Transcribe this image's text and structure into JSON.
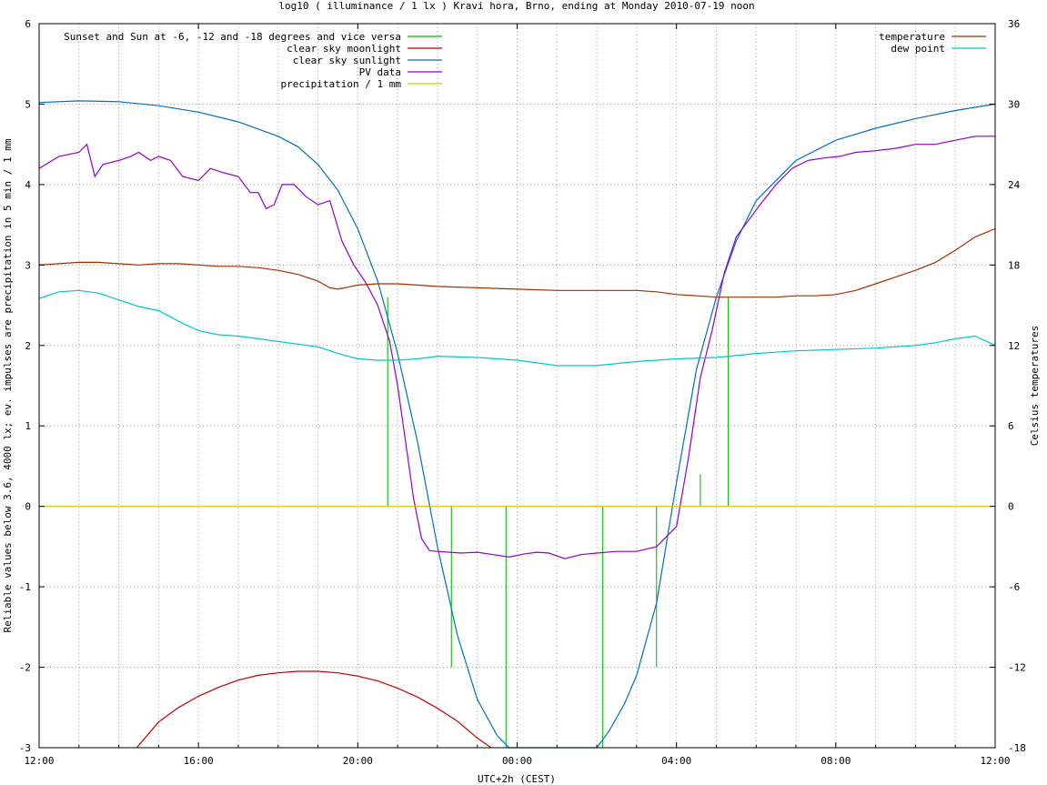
{
  "chart_data": {
    "type": "line",
    "title": "log10 ( illuminance / 1 lx ) Kravi hora, Brno, ending at Monday 2010-07-19 noon",
    "xlabel": "UTC+2h (CEST)",
    "ylabel_left": "Reliable values below 3.6, 4000 lx; ev. impulses are precipitation in 5 min / 1 mm",
    "ylabel_right": "Celsius temperatures",
    "xlim": [
      0,
      24
    ],
    "xtick_values": [
      0,
      4,
      8,
      12,
      16,
      20,
      24
    ],
    "xtick_labels": [
      "12:00",
      "16:00",
      "20:00",
      "00:00",
      "04:00",
      "08:00",
      "12:00"
    ],
    "ylim_left": [
      -3,
      6
    ],
    "yticks_left": [
      "-3",
      "-2",
      "-1",
      "0",
      "1",
      "2",
      "3",
      "4",
      "5",
      "6"
    ],
    "ylim_right": [
      -18,
      36
    ],
    "yticks_right": [
      "-18",
      "-12",
      "-6",
      "0",
      "6",
      "12",
      "18",
      "24",
      "30",
      "36"
    ],
    "grid": true,
    "legend_left": "top-left",
    "legend_right": "top-right",
    "series": [
      {
        "name": "Sunset and Sun at -6, -12 and -18 degrees and vice versa",
        "color": "#00b000",
        "kind": "impulses",
        "x": [
          8.75,
          10.35,
          11.72,
          14.15,
          15.5,
          16.6,
          17.3
        ],
        "y": [
          2.6,
          -2.0,
          -3.0,
          -3.0,
          -2.0,
          0.4,
          2.6
        ]
      },
      {
        "name": "clear sky moonlight",
        "color": "#c00000",
        "kind": "line",
        "x": [
          2.45,
          3.0,
          3.5,
          4.0,
          4.5,
          5.0,
          5.5,
          6.0,
          6.5,
          7.0,
          7.5,
          8.0,
          8.5,
          9.0,
          9.5,
          10.0,
          10.5,
          11.0,
          11.35
        ],
        "y": [
          -3.0,
          -2.68,
          -2.5,
          -2.36,
          -2.25,
          -2.16,
          -2.1,
          -2.07,
          -2.05,
          -2.05,
          -2.07,
          -2.11,
          -2.17,
          -2.26,
          -2.37,
          -2.51,
          -2.67,
          -2.88,
          -3.0
        ]
      },
      {
        "name": "clear sky sunlight",
        "color": "#0070c0",
        "kind": "line",
        "x": [
          0,
          1,
          2,
          3,
          4,
          5,
          6,
          6.5,
          7,
          7.5,
          8,
          8.5,
          9,
          9.5,
          10,
          10.5,
          11,
          11.5,
          11.8,
          14.0,
          14.3,
          14.7,
          15.0,
          15.5,
          16.0,
          16.5,
          17.0,
          17.5,
          18.0,
          19.0,
          20.0,
          21.0,
          22.0,
          23.0,
          24.0
        ],
        "y": [
          5.02,
          5.04,
          5.03,
          4.98,
          4.9,
          4.78,
          4.6,
          4.47,
          4.25,
          3.93,
          3.45,
          2.8,
          1.9,
          0.8,
          -0.5,
          -1.6,
          -2.4,
          -2.85,
          -3.0,
          -3.0,
          -2.8,
          -2.45,
          -2.1,
          -1.2,
          0.3,
          1.7,
          2.6,
          3.3,
          3.8,
          4.3,
          4.55,
          4.7,
          4.82,
          4.92,
          5.0
        ]
      },
      {
        "name": "PV data",
        "color": "#9000d0",
        "kind": "line",
        "x": [
          0,
          0.5,
          1.0,
          1.2,
          1.4,
          1.6,
          2.0,
          2.3,
          2.5,
          2.8,
          3.0,
          3.3,
          3.6,
          4.0,
          4.3,
          4.6,
          5.0,
          5.3,
          5.5,
          5.7,
          5.9,
          6.1,
          6.4,
          6.7,
          7.0,
          7.3,
          7.6,
          7.9,
          8.2,
          8.5,
          8.8,
          9.0,
          9.2,
          9.4,
          9.6,
          9.8,
          10.0,
          10.3,
          10.6,
          11.0,
          11.4,
          11.8,
          12.2,
          12.5,
          12.8,
          13.2,
          13.6,
          14.0,
          14.5,
          15.0,
          15.5,
          16.0,
          16.3,
          16.6,
          16.9,
          17.2,
          17.5,
          17.8,
          18.1,
          18.5,
          18.9,
          19.3,
          19.7,
          20.1,
          20.5,
          21.0,
          21.5,
          22.0,
          22.5,
          23.0,
          23.5,
          24.0
        ],
        "y": [
          4.2,
          4.35,
          4.4,
          4.5,
          4.1,
          4.25,
          4.3,
          4.35,
          4.4,
          4.3,
          4.35,
          4.3,
          4.1,
          4.05,
          4.2,
          4.15,
          4.1,
          3.9,
          3.9,
          3.7,
          3.75,
          4.0,
          4.0,
          3.85,
          3.75,
          3.8,
          3.3,
          3.0,
          2.78,
          2.5,
          2.05,
          1.5,
          0.8,
          0.1,
          -0.4,
          -0.55,
          -0.56,
          -0.57,
          -0.58,
          -0.57,
          -0.6,
          -0.63,
          -0.59,
          -0.57,
          -0.58,
          -0.65,
          -0.6,
          -0.58,
          -0.56,
          -0.56,
          -0.5,
          -0.25,
          0.6,
          1.6,
          2.2,
          2.9,
          3.35,
          3.55,
          3.75,
          4.0,
          4.2,
          4.3,
          4.33,
          4.35,
          4.4,
          4.42,
          4.45,
          4.5,
          4.5,
          4.55,
          4.6,
          4.6
        ]
      },
      {
        "name": "precipitation / 1 mm",
        "color": "#e0c000",
        "kind": "line",
        "x": [
          0,
          24
        ],
        "y": [
          0,
          0
        ]
      },
      {
        "name": "temperature",
        "color": "#a03000",
        "kind": "line",
        "axis": "right",
        "x": [
          0,
          0.5,
          1.0,
          1.5,
          2.0,
          2.5,
          3.0,
          3.5,
          4.0,
          4.5,
          5.0,
          5.5,
          6.0,
          6.5,
          7.0,
          7.3,
          7.5,
          8.0,
          8.5,
          9.0,
          9.5,
          10.0,
          11.0,
          12.0,
          13.0,
          14.0,
          15.0,
          15.5,
          16.0,
          16.5,
          17.0,
          17.5,
          18.0,
          18.5,
          19.0,
          19.5,
          20.0,
          20.5,
          21.0,
          21.5,
          22.0,
          22.5,
          23.0,
          23.5,
          24.0
        ],
        "y": [
          18.0,
          18.1,
          18.2,
          18.2,
          18.1,
          18.0,
          18.1,
          18.1,
          18.0,
          17.9,
          17.9,
          17.8,
          17.6,
          17.3,
          16.8,
          16.3,
          16.2,
          16.5,
          16.6,
          16.6,
          16.5,
          16.4,
          16.3,
          16.2,
          16.1,
          16.1,
          16.1,
          16.0,
          15.8,
          15.7,
          15.6,
          15.6,
          15.6,
          15.6,
          15.7,
          15.7,
          15.8,
          16.1,
          16.6,
          17.1,
          17.6,
          18.2,
          19.1,
          20.1,
          20.7
        ]
      },
      {
        "name": "dew point",
        "color": "#00c8c8",
        "kind": "line",
        "axis": "right",
        "x": [
          0,
          0.5,
          1.0,
          1.5,
          2.0,
          2.5,
          3.0,
          3.5,
          4.0,
          4.5,
          5.0,
          5.5,
          6.0,
          6.5,
          7.0,
          7.5,
          8.0,
          8.5,
          9.0,
          9.5,
          10.0,
          11.0,
          12.0,
          13.0,
          14.0,
          15.0,
          16.0,
          17.0,
          18.0,
          19.0,
          20.0,
          21.0,
          22.0,
          22.5,
          23.0,
          23.5,
          24.0
        ],
        "y": [
          15.5,
          16.0,
          16.1,
          15.9,
          15.4,
          14.9,
          14.6,
          13.8,
          13.1,
          12.8,
          12.7,
          12.5,
          12.3,
          12.1,
          11.9,
          11.4,
          11.0,
          10.9,
          10.9,
          11.0,
          11.2,
          11.1,
          10.9,
          10.5,
          10.5,
          10.8,
          11.0,
          11.1,
          11.4,
          11.6,
          11.7,
          11.8,
          12.0,
          12.2,
          12.5,
          12.7,
          12.0
        ]
      }
    ]
  }
}
